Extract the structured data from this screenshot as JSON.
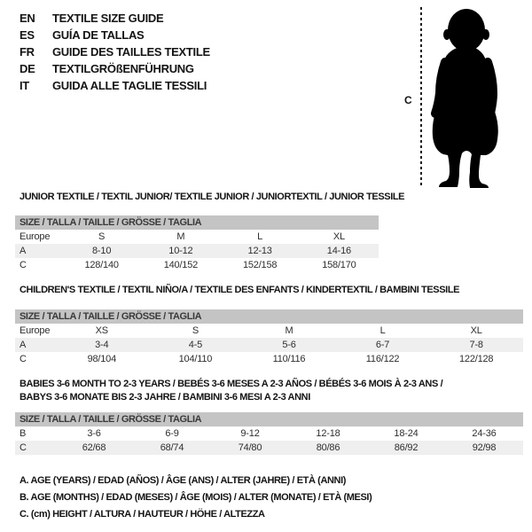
{
  "colors": {
    "background": "#ffffff",
    "table_header_bg": "#c4c4c4",
    "row_stripe_bg": "#efefef",
    "text": "#141414",
    "silhouette": "#000000"
  },
  "language_guide": {
    "items": [
      {
        "code": "EN",
        "label": "TEXTILE SIZE GUIDE"
      },
      {
        "code": "ES",
        "label": "GUÍA DE TALLAS"
      },
      {
        "code": "FR",
        "label": "GUIDE DES TAILLES TEXTILE"
      },
      {
        "code": "DE",
        "label": "TEXTILGRÖßENFÜHRUNG"
      },
      {
        "code": "IT",
        "label": "GUIDA ALLE TAGLIE TESSILI"
      }
    ]
  },
  "figure": {
    "icon": "baby-silhouette",
    "height_marker_label": "C"
  },
  "sections": [
    {
      "title": "JUNIOR TEXTILE / TEXTIL JUNIOR/ TEXTILE JUNIOR / JUNIORTEXTIL / JUNIOR TESSILE",
      "table": {
        "header": "SIZE / TALLA / TAILLE / GRÖSSE / TAGLIA",
        "rows": [
          {
            "label": "Europe",
            "values": [
              "S",
              "M",
              "L",
              "XL"
            ],
            "shaded": false
          },
          {
            "label": "A",
            "values": [
              "8-10",
              "10-12",
              "12-13",
              "14-16"
            ],
            "shaded": true
          },
          {
            "label": "C",
            "values": [
              "128/140",
              "140/152",
              "152/158",
              "158/170"
            ],
            "shaded": false
          }
        ]
      }
    },
    {
      "title": "CHILDREN'S TEXTILE / TEXTIL NIÑO/A / TEXTILE DES ENFANTS / KINDERTEXTIL / BAMBINI TESSILE",
      "table": {
        "header": "SIZE / TALLA / TAILLE / GRÖSSE / TAGLIA",
        "rows": [
          {
            "label": "Europe",
            "values": [
              "XS",
              "S",
              "M",
              "L",
              "XL"
            ],
            "shaded": false
          },
          {
            "label": "A",
            "values": [
              "3-4",
              "4-5",
              "5-6",
              "6-7",
              "7-8"
            ],
            "shaded": true
          },
          {
            "label": "C",
            "values": [
              "98/104",
              "104/110",
              "110/116",
              "116/122",
              "122/128"
            ],
            "shaded": false
          }
        ]
      }
    },
    {
      "title": "BABIES 3-6 MONTH TO 2-3 YEARS / BEBÉS 3-6 MESES A 2-3 AÑOS / BÉBÉS 3-6 MOIS À 2-3 ANS / BABYS 3-6 MONATE BIS 2-3 JAHRE / BAMBINI 3-6 MESI A 2-3 ANNI",
      "table": {
        "header": "SIZE / TALLA / TAILLE / GRÖSSE / TAGLIA",
        "rows": [
          {
            "label": "B",
            "values": [
              "3-6",
              "6-9",
              "9-12",
              "12-18",
              "18-24",
              "24-36"
            ],
            "shaded": false
          },
          {
            "label": "C",
            "values": [
              "62/68",
              "68/74",
              "74/80",
              "80/86",
              "86/92",
              "92/98"
            ],
            "shaded": true
          }
        ]
      }
    }
  ],
  "legend": {
    "lines": [
      "A. AGE (YEARS) / EDAD (AÑOS) / ÂGE (ANS) / ALTER (JAHRE) / ETÀ (ANNI)",
      "B. AGE (MONTHS) / EDAD (MESES) / ÂGE (MOIS) / ALTER (MONATE) / ETÀ (MESI)",
      "C. (cm) HEIGHT / ALTURA / HAUTEUR / HÖHE / ALTEZZA"
    ]
  }
}
